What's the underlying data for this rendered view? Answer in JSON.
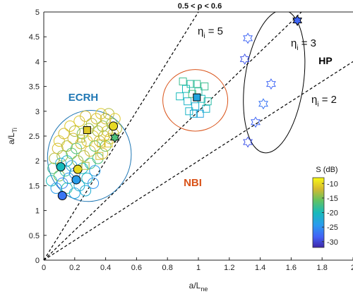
{
  "chart_data": {
    "type": "scatter",
    "title": "0.5 < ρ < 0.6",
    "xlabel": "a/L",
    "xlabel_sub": "ne",
    "ylabel": "a/L",
    "ylabel_sub": "Ti",
    "xlim": [
      0,
      2
    ],
    "ylim": [
      0,
      5
    ],
    "xticks": [
      "0",
      "0.2",
      "0.4",
      "0.6",
      "0.8",
      "1",
      "1.2",
      "1.4",
      "1.6",
      "1.8",
      "2"
    ],
    "yticks": [
      "0",
      "0.5",
      "1",
      "1.5",
      "2",
      "2.5",
      "3",
      "3.5",
      "4",
      "4.5",
      "5"
    ],
    "reference_lines": [
      {
        "label": "η",
        "label_sub": "i",
        "label_suffix": " = 5",
        "eta": 5
      },
      {
        "label": "η",
        "label_sub": "i",
        "label_suffix": " = 3",
        "eta": 3
      },
      {
        "label": "η",
        "label_sub": "i",
        "label_suffix": " = 2",
        "eta": 2
      }
    ],
    "groups": [
      {
        "label": "ECRH",
        "color": "#1f77b4",
        "ellipse": {
          "cx": 0.295,
          "cy": 2.1,
          "rx": 0.27,
          "ry": 0.92,
          "angle_deg": 10
        }
      },
      {
        "label": "NBI",
        "color": "#d95319",
        "ellipse": {
          "cx": 0.98,
          "cy": 3.22,
          "rx": 0.21,
          "ry": 0.62,
          "angle_deg": 0
        }
      },
      {
        "label": "HP",
        "color": "#000000",
        "ellipse": {
          "cx": 1.49,
          "cy": 3.6,
          "rx": 0.19,
          "ry": 1.45,
          "angle_deg": 8
        }
      }
    ],
    "colorbar": {
      "label": "S (dB)",
      "min": -32,
      "max": -8,
      "ticks": [
        "-10",
        "-15",
        "-20",
        "-25",
        "-30"
      ]
    },
    "series": [
      {
        "marker": "circle-open",
        "points": [
          [
            0.05,
            1.6,
            -20
          ],
          [
            0.06,
            1.85,
            -18
          ],
          [
            0.07,
            2.05,
            -13
          ],
          [
            0.08,
            1.45,
            -24
          ],
          [
            0.09,
            2.25,
            -12
          ],
          [
            0.1,
            1.7,
            -15
          ],
          [
            0.1,
            2.4,
            -11
          ],
          [
            0.11,
            1.95,
            -22
          ],
          [
            0.12,
            2.1,
            -14
          ],
          [
            0.12,
            1.55,
            -26
          ],
          [
            0.13,
            2.55,
            -12
          ],
          [
            0.14,
            1.8,
            -19
          ],
          [
            0.15,
            2.3,
            -13
          ],
          [
            0.15,
            2.0,
            -21
          ],
          [
            0.16,
            1.65,
            -24
          ],
          [
            0.17,
            2.7,
            -11
          ],
          [
            0.18,
            2.15,
            -16
          ],
          [
            0.18,
            1.9,
            -23
          ],
          [
            0.19,
            2.45,
            -12
          ],
          [
            0.2,
            2.6,
            -13
          ],
          [
            0.2,
            1.75,
            -25
          ],
          [
            0.21,
            2.25,
            -17
          ],
          [
            0.22,
            2.0,
            -14
          ],
          [
            0.23,
            2.8,
            -11
          ],
          [
            0.23,
            1.5,
            -22
          ],
          [
            0.24,
            2.35,
            -12
          ],
          [
            0.25,
            2.55,
            -15
          ],
          [
            0.25,
            1.85,
            -20
          ],
          [
            0.26,
            2.1,
            -13
          ],
          [
            0.27,
            2.9,
            -12
          ],
          [
            0.28,
            2.4,
            -11
          ],
          [
            0.28,
            1.65,
            -21
          ],
          [
            0.29,
            2.65,
            -14
          ],
          [
            0.3,
            2.2,
            -12
          ],
          [
            0.3,
            1.95,
            -18
          ],
          [
            0.31,
            2.75,
            -13
          ],
          [
            0.32,
            2.5,
            -11
          ],
          [
            0.33,
            2.3,
            -16
          ],
          [
            0.33,
            1.8,
            -24
          ],
          [
            0.34,
            2.85,
            -12
          ],
          [
            0.35,
            2.6,
            -13
          ],
          [
            0.35,
            2.05,
            -17
          ],
          [
            0.36,
            2.4,
            -12
          ],
          [
            0.37,
            2.95,
            -11
          ],
          [
            0.38,
            2.7,
            -14
          ],
          [
            0.38,
            2.15,
            -12
          ],
          [
            0.39,
            2.5,
            -13
          ],
          [
            0.4,
            2.85,
            -12
          ],
          [
            0.4,
            2.3,
            -15
          ],
          [
            0.41,
            2.6,
            -11
          ],
          [
            0.42,
            2.95,
            -13
          ],
          [
            0.43,
            2.45,
            -12
          ],
          [
            0.44,
            2.75,
            -14
          ],
          [
            0.45,
            2.55,
            -12
          ],
          [
            0.46,
            2.85,
            -11
          ],
          [
            0.47,
            2.65,
            -13
          ],
          [
            0.32,
            1.55,
            -25
          ],
          [
            0.2,
            1.35,
            -23
          ],
          [
            0.15,
            1.45,
            -19
          ],
          [
            0.27,
            1.4,
            -22
          ]
        ]
      },
      {
        "marker": "circle-filled",
        "points": [
          [
            0.12,
            1.3,
            -27
          ],
          [
            0.21,
            1.62,
            -24
          ],
          [
            0.22,
            1.83,
            -10
          ],
          [
            0.45,
            2.7,
            -10
          ],
          [
            0.11,
            1.88,
            -20
          ]
        ]
      },
      {
        "marker": "square-open",
        "points": [
          [
            0.9,
            3.6,
            -18
          ],
          [
            0.92,
            3.45,
            -20
          ],
          [
            0.95,
            3.55,
            -19
          ],
          [
            0.93,
            3.2,
            -21
          ],
          [
            0.96,
            3.35,
            -17
          ],
          [
            0.98,
            3.1,
            -22
          ],
          [
            1.0,
            3.4,
            -19
          ],
          [
            1.02,
            3.25,
            -20
          ],
          [
            1.04,
            3.5,
            -18
          ],
          [
            1.05,
            3.05,
            -21
          ],
          [
            0.97,
            2.95,
            -22
          ],
          [
            1.01,
            2.95,
            -23
          ],
          [
            1.06,
            3.2,
            -19
          ],
          [
            0.94,
            3.0,
            -21
          ],
          [
            0.99,
            3.55,
            -18
          ],
          [
            0.88,
            3.3,
            -20
          ],
          [
            0.27,
            1.9,
            -13
          ],
          [
            0.37,
            2.35,
            -12
          ],
          [
            0.24,
            2.45,
            -13
          ],
          [
            0.42,
            2.35,
            -11
          ],
          [
            0.36,
            2.1,
            -12
          ]
        ]
      },
      {
        "marker": "square-filled",
        "points": [
          [
            0.99,
            3.28,
            -23
          ],
          [
            0.28,
            2.62,
            -11
          ]
        ]
      },
      {
        "marker": "star-open",
        "points": [
          [
            1.32,
            4.47,
            -28
          ],
          [
            1.3,
            4.05,
            -29
          ],
          [
            1.47,
            3.55,
            -28
          ],
          [
            1.42,
            3.15,
            -27
          ],
          [
            1.37,
            2.78,
            -28
          ],
          [
            1.32,
            2.38,
            -29
          ]
        ]
      },
      {
        "marker": "star-filled",
        "points": [
          [
            1.64,
            4.83,
            -28
          ],
          [
            0.46,
            2.47,
            -17
          ]
        ]
      }
    ]
  }
}
